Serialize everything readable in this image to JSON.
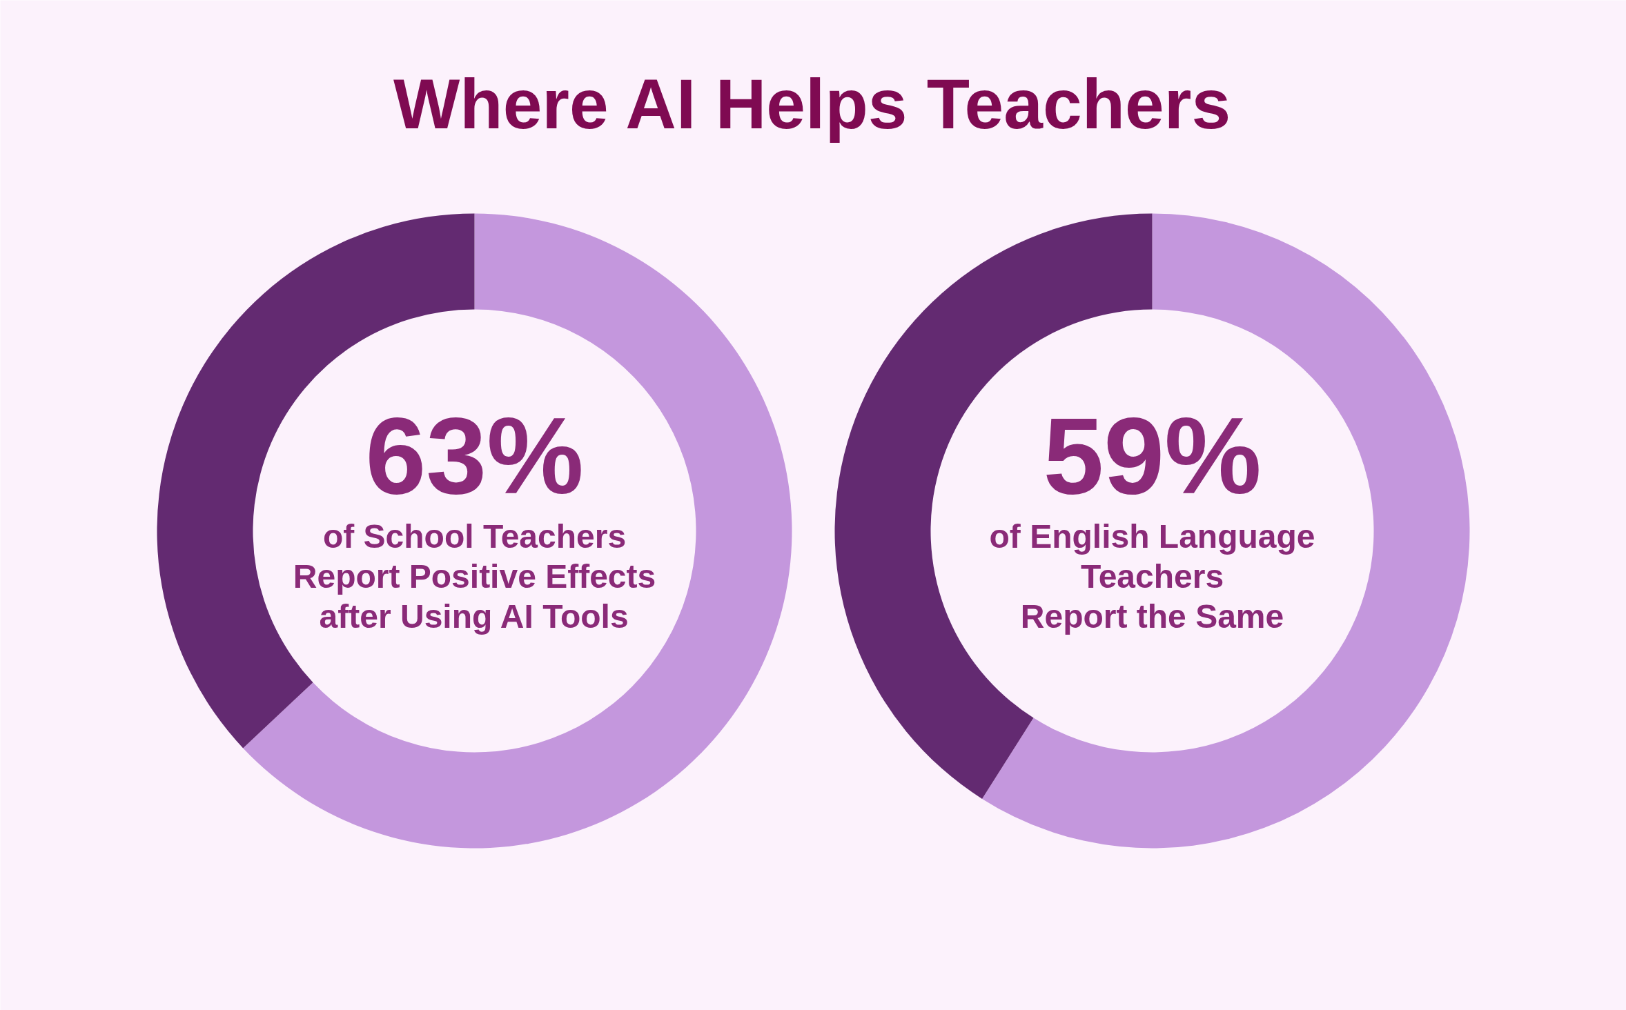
{
  "chart_data": [
    {
      "type": "other",
      "title": "Where AI Helps Teachers"
    },
    {
      "type": "donut",
      "categories": [
        null,
        null
      ],
      "values": [
        63,
        37
      ],
      "colors": [
        "#c497dd",
        "#632a71"
      ],
      "value_labels": [
        "63%",
        null
      ],
      "annotations": [
        "of School Teachers\nReport Positive Effects\nafter Using AI Tools"
      ]
    },
    {
      "type": "donut",
      "categories": [
        null,
        null
      ],
      "values": [
        59,
        41
      ],
      "colors": [
        "#c497dd",
        "#632a71"
      ],
      "value_labels": [
        "59%",
        null
      ],
      "annotations": [
        "of English Language\nTeachers\nReport the Same"
      ]
    }
  ]
}
